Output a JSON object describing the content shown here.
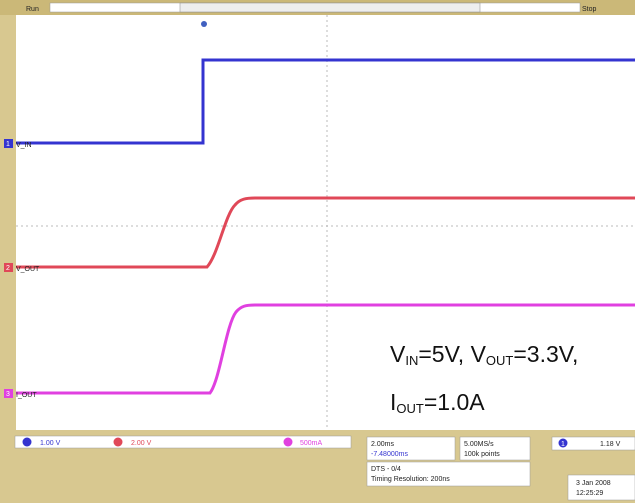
{
  "header": {
    "left": "Run",
    "right": "Stop"
  },
  "channels": [
    {
      "number": "1",
      "label": "V_IN"
    },
    {
      "number": "2",
      "label": "V_OUT"
    },
    {
      "number": "3",
      "label": "I_OUT"
    }
  ],
  "annotation": {
    "line1": [
      "V",
      "IN",
      "=5V, V",
      "OUT",
      "=3.3V,"
    ],
    "line2": [
      "I",
      "OUT",
      "=1.0A"
    ]
  },
  "readouts": {
    "ch1": "1.00 V",
    "ch2": "2.00 V",
    "ch3": "500mA",
    "timebase": "2.00ms",
    "delay": "-7.48000ms",
    "sample_rate": "5.00MS/s",
    "record": "100k points",
    "mode": "DTS - 0/4",
    "resolution": "Timing Resolution: 200ns",
    "trigger_channel": "1",
    "trigger_level": "1.18 V",
    "date": "3 Jan 2008",
    "time": "12:25:29"
  }
}
